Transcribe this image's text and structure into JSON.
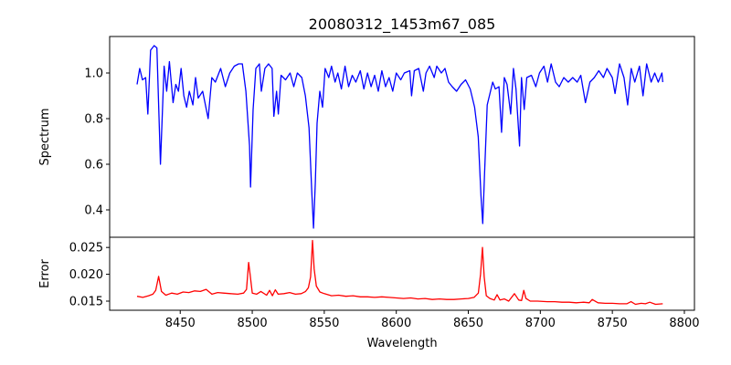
{
  "chart_data": [
    {
      "type": "line",
      "title": "20080312_1453m67_085",
      "ylabel": "Spectrum",
      "xlabel": "",
      "xlim": [
        8401,
        8807
      ],
      "ylim": [
        0.28,
        1.16
      ],
      "yticks": [
        0.4,
        0.6,
        0.8,
        1.0
      ],
      "ytick_labels": [
        "0.4",
        "0.6",
        "0.8",
        "1.0"
      ],
      "color": "#0000ff",
      "x": [
        8420,
        8421.9,
        8423.8,
        8426,
        8427.5,
        8429.4,
        8431.9,
        8433.8,
        8436.3,
        8438.8,
        8440.6,
        8442.5,
        8445,
        8446.9,
        8448.8,
        8450.6,
        8452.5,
        8454.4,
        8456.3,
        8458.8,
        8460.6,
        8462.5,
        8465.6,
        8469.4,
        8471.9,
        8474.4,
        8478.1,
        8481.3,
        8484.4,
        8487.5,
        8490.6,
        8493.1,
        8495.6,
        8498.1,
        8498.8,
        8500.6,
        8502.5,
        8505,
        8506.3,
        8508.8,
        8511.3,
        8513.8,
        8515,
        8516.9,
        8518.1,
        8520,
        8523.1,
        8526.3,
        8528.8,
        8531.3,
        8534.4,
        8536.9,
        8539.4,
        8541.3,
        8542.5,
        8543.8,
        8545,
        8546.9,
        8548.8,
        8550.6,
        8553.1,
        8555,
        8557.5,
        8559.4,
        8561.9,
        8564.4,
        8566.9,
        8569.4,
        8571.9,
        8575,
        8577.5,
        8580,
        8582.5,
        8585,
        8587.5,
        8590,
        8592.5,
        8595,
        8597.5,
        8600,
        8603.1,
        8605.6,
        8609.4,
        8610.6,
        8612.5,
        8615.6,
        8618.8,
        8620.6,
        8623.1,
        8626.3,
        8628.1,
        8631.3,
        8633.8,
        8636.3,
        8638.8,
        8641.9,
        8645,
        8648.1,
        8651.3,
        8654.4,
        8656.9,
        8658.8,
        8660,
        8661.3,
        8663.1,
        8665,
        8666.9,
        8668.8,
        8671.3,
        8673.1,
        8675,
        8676.9,
        8679.4,
        8681.3,
        8683.1,
        8685.6,
        8686.9,
        8688.8,
        8690.6,
        8693.8,
        8696.9,
        8699.4,
        8702.5,
        8705,
        8707.5,
        8710.6,
        8713.1,
        8716.3,
        8719.4,
        8722.5,
        8725.6,
        8728.1,
        8731.3,
        8734.4,
        8737.5,
        8740.6,
        8743.8,
        8746.3,
        8750,
        8751.9,
        8755,
        8758.1,
        8760.6,
        8763.1,
        8765.6,
        8768.8,
        8771.3,
        8773.8,
        8776.9,
        8779.4,
        8781.9,
        8784.4,
        8785
      ],
      "y": [
        0.95,
        1.02,
        0.97,
        0.98,
        0.82,
        1.1,
        1.12,
        1.11,
        0.6,
        1.03,
        0.92,
        1.05,
        0.87,
        0.95,
        0.92,
        1.02,
        0.9,
        0.85,
        0.92,
        0.86,
        0.98,
        0.89,
        0.92,
        0.8,
        0.98,
        0.96,
        1.02,
        0.94,
        1.0,
        1.03,
        1.04,
        1.04,
        0.92,
        0.68,
        0.5,
        0.84,
        1.02,
        1.04,
        0.92,
        1.02,
        1.04,
        1.02,
        0.81,
        0.92,
        0.82,
        0.99,
        0.97,
        1.0,
        0.94,
        1.0,
        0.98,
        0.9,
        0.76,
        0.48,
        0.32,
        0.52,
        0.78,
        0.92,
        0.85,
        1.02,
        0.98,
        1.03,
        0.96,
        1.0,
        0.93,
        1.03,
        0.94,
        0.99,
        0.96,
        1.01,
        0.93,
        1.0,
        0.94,
        0.99,
        0.92,
        1.01,
        0.94,
        0.98,
        0.92,
        1.0,
        0.97,
        1.0,
        1.01,
        0.9,
        1.01,
        1.02,
        0.92,
        1.0,
        1.03,
        0.98,
        1.03,
        1.0,
        1.02,
        0.96,
        0.94,
        0.92,
        0.95,
        0.97,
        0.93,
        0.85,
        0.72,
        0.46,
        0.34,
        0.56,
        0.86,
        0.91,
        0.96,
        0.93,
        0.94,
        0.74,
        0.98,
        0.95,
        0.82,
        1.02,
        0.93,
        0.68,
        0.98,
        0.84,
        0.98,
        0.99,
        0.94,
        1.0,
        1.03,
        0.96,
        1.04,
        0.96,
        0.94,
        0.98,
        0.96,
        0.98,
        0.96,
        0.99,
        0.87,
        0.96,
        0.98,
        1.01,
        0.98,
        1.02,
        0.98,
        0.91,
        1.04,
        0.98,
        0.86,
        1.02,
        0.96,
        1.03,
        0.9,
        1.04,
        0.96,
        1.0,
        0.96,
        1.0,
        0.96
      ]
    },
    {
      "type": "line",
      "title": "",
      "ylabel": "Error",
      "xlabel": "Wavelength",
      "xlim": [
        8401,
        8807
      ],
      "ylim": [
        0.0133,
        0.0269
      ],
      "xticks": [
        8450,
        8500,
        8550,
        8600,
        8650,
        8700,
        8750,
        8800
      ],
      "xtick_labels": [
        "8450",
        "8500",
        "8550",
        "8600",
        "8650",
        "8700",
        "8750",
        "8800"
      ],
      "yticks": [
        0.015,
        0.02,
        0.025
      ],
      "ytick_labels": [
        "0.015",
        "0.020",
        "0.025"
      ],
      "color": "#ff0000",
      "x": [
        8420,
        8424,
        8428,
        8431,
        8433,
        8435,
        8437,
        8440,
        8444,
        8448,
        8452,
        8456,
        8460,
        8464,
        8468,
        8472,
        8476,
        8480,
        8485,
        8490,
        8494,
        8496,
        8497.5,
        8498.5,
        8500,
        8503,
        8506,
        8510,
        8512,
        8514,
        8516,
        8518,
        8522,
        8526,
        8530,
        8534,
        8537,
        8539,
        8540.5,
        8541.8,
        8543,
        8544.5,
        8547,
        8550,
        8555,
        8560,
        8565,
        8570,
        8575,
        8580,
        8585,
        8590,
        8595,
        8600,
        8605,
        8610,
        8615,
        8620,
        8625,
        8630,
        8635,
        8640,
        8645,
        8650,
        8654,
        8657,
        8658.5,
        8659.8,
        8661,
        8662.5,
        8665,
        8668,
        8670,
        8672,
        8675,
        8678,
        8682,
        8685,
        8687,
        8688.5,
        8690,
        8693,
        8698,
        8705,
        8710,
        8715,
        8720,
        8725,
        8730,
        8734,
        8736,
        8740,
        8745,
        8750,
        8755,
        8760,
        8763,
        8766,
        8770,
        8773,
        8776,
        8780,
        8785
      ],
      "y": [
        0.0159,
        0.0157,
        0.016,
        0.0163,
        0.017,
        0.0196,
        0.0168,
        0.0161,
        0.0165,
        0.0163,
        0.0167,
        0.0166,
        0.0169,
        0.0168,
        0.0172,
        0.0163,
        0.0166,
        0.0165,
        0.0164,
        0.0163,
        0.0165,
        0.0172,
        0.0222,
        0.02,
        0.0165,
        0.0163,
        0.0168,
        0.0161,
        0.017,
        0.016,
        0.0171,
        0.0163,
        0.0164,
        0.0166,
        0.0163,
        0.0164,
        0.0168,
        0.0175,
        0.0195,
        0.0263,
        0.021,
        0.0178,
        0.0167,
        0.0164,
        0.016,
        0.0161,
        0.0159,
        0.016,
        0.0158,
        0.0158,
        0.0157,
        0.0158,
        0.0157,
        0.0156,
        0.0155,
        0.0156,
        0.0154,
        0.0155,
        0.0153,
        0.0154,
        0.0153,
        0.0153,
        0.0154,
        0.0155,
        0.0157,
        0.0165,
        0.02,
        0.025,
        0.0195,
        0.016,
        0.0155,
        0.0152,
        0.0162,
        0.0152,
        0.0154,
        0.015,
        0.0164,
        0.0152,
        0.0151,
        0.017,
        0.0155,
        0.015,
        0.015,
        0.0149,
        0.0149,
        0.0148,
        0.0148,
        0.0147,
        0.0148,
        0.0147,
        0.0153,
        0.0147,
        0.0146,
        0.0146,
        0.0145,
        0.0145,
        0.0149,
        0.0144,
        0.0146,
        0.0145,
        0.0148,
        0.0144,
        0.0145
      ]
    }
  ]
}
